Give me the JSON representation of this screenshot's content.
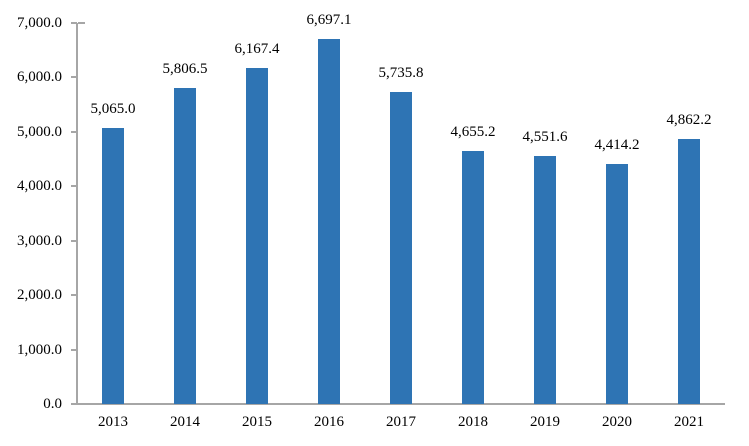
{
  "chart_data": {
    "type": "bar",
    "title": "",
    "xlabel": "",
    "ylabel": "",
    "categories": [
      "2013",
      "2014",
      "2015",
      "2016",
      "2017",
      "2018",
      "2019",
      "2020",
      "2021"
    ],
    "values": [
      5065.0,
      5806.5,
      6167.4,
      6697.1,
      5735.8,
      4655.2,
      4551.6,
      4414.2,
      4862.2
    ],
    "value_labels": [
      "5,065.0",
      "5,806.5",
      "6,167.4",
      "6,697.1",
      "5,735.8",
      "4,655.2",
      "4,551.6",
      "4,414.2",
      "4,862.2"
    ],
    "ylim": [
      0,
      7000
    ],
    "y_tick_step": 1000,
    "y_tick_labels": [
      "7,000.0",
      "6,000.0",
      "5,000.0",
      "4,000.0",
      "3,000.0",
      "2,000.0",
      "1,000.0",
      "0.0"
    ],
    "grid": false,
    "legend": false,
    "bar_color": "#2E74B4",
    "axis_color": "#A6A6A6",
    "text_color": "#000000"
  }
}
